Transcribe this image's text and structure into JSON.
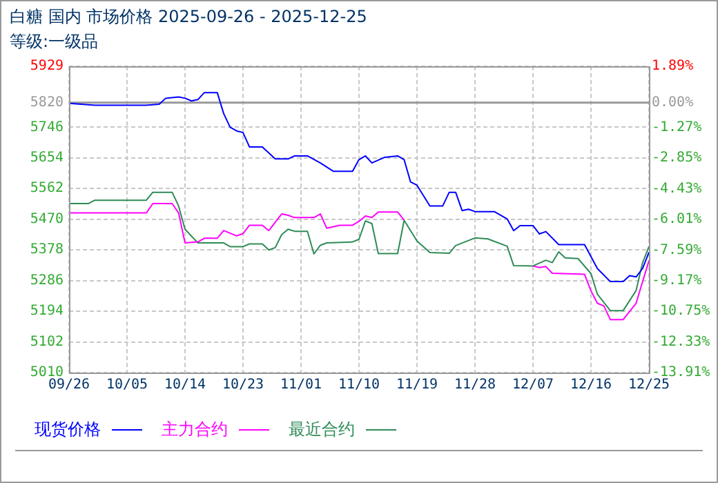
{
  "chart_data": {
    "type": "line",
    "title": "白糖 国内 市场价格 2025-09-26 - 2025-12-25",
    "subtitle": "等级:一级品",
    "xlim": [
      "2025-09-26",
      "2025-12-25"
    ],
    "xticks": [
      {
        "value": "2025-09-26",
        "label": "09/26"
      },
      {
        "value": "2025-10-05",
        "label": "10/05"
      },
      {
        "value": "2025-10-14",
        "label": "10/14"
      },
      {
        "value": "2025-10-23",
        "label": "10/23"
      },
      {
        "value": "2025-11-01",
        "label": "11/01"
      },
      {
        "value": "2025-11-10",
        "label": "11/10"
      },
      {
        "value": "2025-11-19",
        "label": "11/19"
      },
      {
        "value": "2025-11-28",
        "label": "11/28"
      },
      {
        "value": "2025-12-07",
        "label": "12/07"
      },
      {
        "value": "2025-12-16",
        "label": "12/16"
      },
      {
        "value": "2025-12-25",
        "label": "12/25"
      }
    ],
    "ylim": [
      5010,
      5929
    ],
    "yticks": [
      5010,
      5102,
      5194,
      5286,
      5378,
      5470,
      5562,
      5654,
      5746,
      5820,
      5929
    ],
    "y2lim": [
      -13.91,
      1.89
    ],
    "y2ticks": [
      {
        "value": -13.91,
        "label": "-13.91%"
      },
      {
        "value": -12.33,
        "label": "-12.33%"
      },
      {
        "value": -10.75,
        "label": "-10.75%"
      },
      {
        "value": -9.17,
        "label": "-9.17%"
      },
      {
        "value": -7.59,
        "label": "-7.59%"
      },
      {
        "value": -6.01,
        "label": "-6.01%"
      },
      {
        "value": -4.43,
        "label": "-4.43%"
      },
      {
        "value": -2.85,
        "label": "-2.85%"
      },
      {
        "value": -1.27,
        "label": "-1.27%"
      },
      {
        "value": 0,
        "label": "0.00%"
      },
      {
        "value": 1.89,
        "label": "1.89%"
      }
    ],
    "grid": true,
    "legend": "bottom",
    "ref_lines": [
      {
        "axis": "y",
        "value": 5820,
        "color": "#999999"
      }
    ],
    "series": [
      {
        "name": "现货价格",
        "color": "#0000ff",
        "x": [
          "2025-09-26",
          "2025-09-30",
          "2025-10-08",
          "2025-10-10",
          "2025-10-11",
          "2025-10-13",
          "2025-10-14",
          "2025-10-15",
          "2025-10-16",
          "2025-10-17",
          "2025-10-19",
          "2025-10-20",
          "2025-10-21",
          "2025-10-22",
          "2025-10-23",
          "2025-10-24",
          "2025-10-26",
          "2025-10-28",
          "2025-10-30",
          "2025-10-31",
          "2025-11-02",
          "2025-11-04",
          "2025-11-06",
          "2025-11-09",
          "2025-11-10",
          "2025-11-11",
          "2025-11-12",
          "2025-11-14",
          "2025-11-16",
          "2025-11-17",
          "2025-11-18",
          "2025-11-19",
          "2025-11-21",
          "2025-11-23",
          "2025-11-24",
          "2025-11-25",
          "2025-11-26",
          "2025-11-27",
          "2025-11-28",
          "2025-12-01",
          "2025-12-03",
          "2025-12-04",
          "2025-12-05",
          "2025-12-07",
          "2025-12-08",
          "2025-12-09",
          "2025-12-11",
          "2025-12-15",
          "2025-12-17",
          "2025-12-19",
          "2025-12-21",
          "2025-12-22",
          "2025-12-23",
          "2025-12-24",
          "2025-12-25"
        ],
        "values": [
          5818,
          5812,
          5812,
          5815,
          5833,
          5837,
          5833,
          5825,
          5829,
          5850,
          5850,
          5787,
          5746,
          5735,
          5730,
          5687,
          5687,
          5651,
          5651,
          5660,
          5660,
          5639,
          5614,
          5614,
          5649,
          5660,
          5639,
          5656,
          5660,
          5649,
          5582,
          5572,
          5510,
          5510,
          5551,
          5551,
          5496,
          5500,
          5493,
          5493,
          5471,
          5436,
          5451,
          5451,
          5426,
          5433,
          5394,
          5394,
          5322,
          5283,
          5283,
          5301,
          5297,
          5322,
          5371
        ]
      },
      {
        "name": "主力合约",
        "color": "#ff00ff",
        "x": [
          "2025-09-26",
          "2025-10-08",
          "2025-10-09",
          "2025-10-12",
          "2025-10-13",
          "2025-10-14",
          "2025-10-16",
          "2025-10-17",
          "2025-10-19",
          "2025-10-20",
          "2025-10-22",
          "2025-10-23",
          "2025-10-24",
          "2025-10-26",
          "2025-10-27",
          "2025-10-29",
          "2025-10-30",
          "2025-10-31",
          "2025-11-03",
          "2025-11-04",
          "2025-11-05",
          "2025-11-07",
          "2025-11-09",
          "2025-11-10",
          "2025-11-11",
          "2025-11-12",
          "2025-11-13",
          "2025-11-16",
          "2025-11-17",
          "2025-11-19",
          "2025-11-21",
          "2025-11-24",
          "2025-11-25",
          "2025-11-28",
          "2025-11-30",
          "2025-12-03",
          "2025-12-04",
          "2025-12-07",
          "2025-12-08",
          "2025-12-09",
          "2025-12-10",
          "2025-12-15",
          "2025-12-16",
          "2025-12-17",
          "2025-12-18",
          "2025-12-19",
          "2025-12-21",
          "2025-12-23",
          "2025-12-25"
        ],
        "values": [
          5489,
          5489,
          5517,
          5517,
          5489,
          5399,
          5402,
          5413,
          5413,
          5436,
          5420,
          5427,
          5452,
          5452,
          5436,
          5486,
          5482,
          5475,
          5475,
          5486,
          5443,
          5452,
          5452,
          5464,
          5480,
          5475,
          5492,
          5492,
          5467,
          null,
          null,
          null,
          null,
          null,
          null,
          null,
          null,
          5330,
          5325,
          5328,
          5308,
          5305,
          5255,
          5218,
          5210,
          5169,
          5169,
          5218,
          5346
        ]
      },
      {
        "name": "最近合约",
        "color": "#2e8b57",
        "x": [
          "2025-09-26",
          "2025-09-29",
          "2025-09-30",
          "2025-10-08",
          "2025-10-09",
          "2025-10-12",
          "2025-10-13",
          "2025-10-14",
          "2025-10-16",
          "2025-10-20",
          "2025-10-21",
          "2025-10-23",
          "2025-10-24",
          "2025-10-26",
          "2025-10-27",
          "2025-10-28",
          "2025-10-29",
          "2025-10-30",
          "2025-10-31",
          "2025-11-02",
          "2025-11-03",
          "2025-11-04",
          "2025-11-05",
          "2025-11-09",
          "2025-11-10",
          "2025-11-11",
          "2025-11-12",
          "2025-11-13",
          "2025-11-16",
          "2025-11-17",
          "2025-11-19",
          "2025-11-21",
          "2025-11-24",
          "2025-11-25",
          "2025-11-28",
          "2025-11-30",
          "2025-12-03",
          "2025-12-04",
          "2025-12-07",
          "2025-12-09",
          "2025-12-10",
          "2025-12-11",
          "2025-12-12",
          "2025-12-14",
          "2025-12-16",
          "2025-12-17",
          "2025-12-19",
          "2025-12-21",
          "2025-12-23",
          "2025-12-24",
          "2025-12-25"
        ],
        "values": [
          5517,
          5517,
          5527,
          5527,
          5551,
          5551,
          5510,
          5440,
          5399,
          5399,
          5388,
          5388,
          5396,
          5396,
          5378,
          5385,
          5424,
          5440,
          5434,
          5434,
          5366,
          5392,
          5399,
          5402,
          5410,
          5465,
          5457,
          5367,
          5367,
          5467,
          5405,
          5370,
          5368,
          5391,
          5414,
          5411,
          5389,
          5331,
          5330,
          5347,
          5340,
          5372,
          5354,
          5352,
          5307,
          5245,
          5196,
          5196,
          5256,
          5339,
          5388
        ]
      }
    ]
  }
}
